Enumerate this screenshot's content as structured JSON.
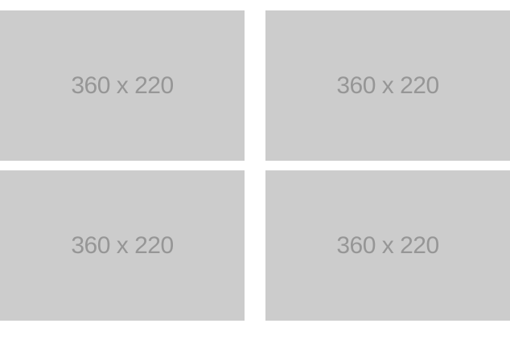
{
  "colors": {
    "placeholder_background": "#cccccc",
    "placeholder_text": "#969696",
    "page_background": "#ffffff"
  },
  "grid": {
    "items": [
      {
        "label": "360 x 220"
      },
      {
        "label": "360 x 220"
      },
      {
        "label": "360 x 220"
      },
      {
        "label": "360 x 220"
      }
    ]
  }
}
